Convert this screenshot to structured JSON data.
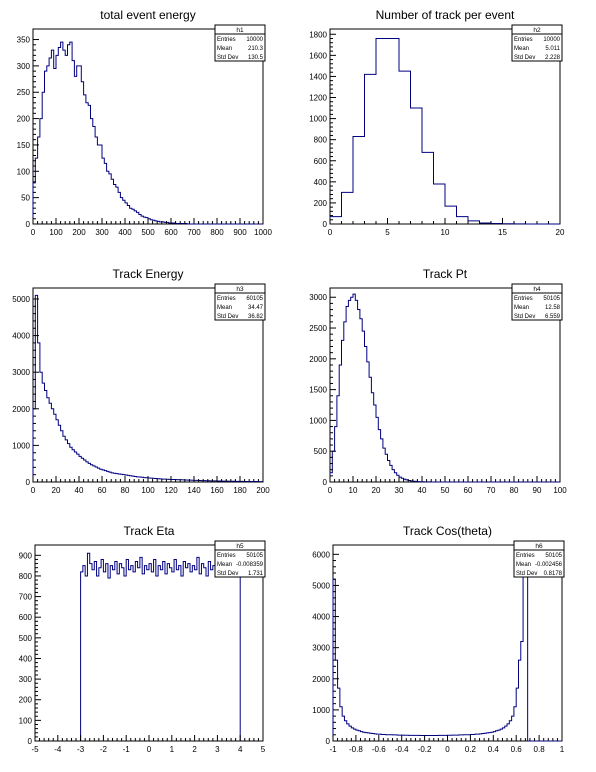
{
  "chart_data": [
    {
      "type": "histogram",
      "title": "total event  energy",
      "stats": {
        "name": "h1",
        "rows": [
          [
            "Entries",
            "10000"
          ],
          [
            "Mean",
            "210.3"
          ],
          [
            "Std Dev",
            "130.5"
          ]
        ]
      },
      "xlim": [
        0,
        1000
      ],
      "ylim": [
        0,
        370
      ],
      "xticks": [
        0,
        100,
        200,
        300,
        400,
        500,
        600,
        700,
        800,
        900,
        1000
      ],
      "yticks": [
        0,
        50,
        100,
        150,
        200,
        250,
        300,
        350
      ],
      "binwidth": 10,
      "values": [
        78,
        125,
        165,
        200,
        250,
        290,
        300,
        315,
        330,
        295,
        320,
        335,
        345,
        330,
        320,
        340,
        345,
        310,
        280,
        300,
        300,
        270,
        245,
        230,
        225,
        200,
        185,
        165,
        150,
        150,
        125,
        115,
        100,
        95,
        85,
        75,
        70,
        60,
        50,
        45,
        40,
        35,
        30,
        28,
        25,
        22,
        18,
        15,
        13,
        12,
        10,
        8,
        7,
        6,
        5,
        4,
        4,
        3,
        3,
        2,
        2,
        2,
        1,
        1,
        1,
        1,
        1,
        0,
        0,
        0,
        0,
        0,
        0,
        0,
        0,
        0,
        0,
        0,
        0,
        0,
        0,
        0,
        0,
        0,
        0,
        0,
        0,
        0,
        0,
        0,
        0,
        0,
        0,
        0,
        0,
        0,
        0,
        0,
        0,
        0
      ]
    },
    {
      "type": "histogram",
      "title": "Number of track per event",
      "stats": {
        "name": "h2",
        "rows": [
          [
            "Entries",
            "10000"
          ],
          [
            "Mean",
            "5.011"
          ],
          [
            "Std Dev",
            "2.228"
          ]
        ]
      },
      "xlim": [
        0,
        20
      ],
      "ylim": [
        0,
        1850
      ],
      "xticks": [
        0,
        5,
        10,
        15,
        20
      ],
      "yticks": [
        0,
        200,
        400,
        600,
        800,
        1000,
        1200,
        1400,
        1600,
        1800
      ],
      "binwidth": 1,
      "values": [
        70,
        300,
        830,
        1420,
        1760,
        1760,
        1450,
        1100,
        680,
        380,
        170,
        70,
        30,
        10,
        5,
        2,
        1,
        0,
        0,
        0
      ]
    },
    {
      "type": "histogram",
      "title": "Track Energy",
      "stats": {
        "name": "h3",
        "rows": [
          [
            "Entries",
            "60105"
          ],
          [
            "Mean",
            "34.47"
          ],
          [
            "Std Dev",
            "36.82"
          ]
        ]
      },
      "xlim": [
        0,
        200
      ],
      "ylim": [
        0,
        5300
      ],
      "xticks": [
        0,
        20,
        40,
        60,
        80,
        100,
        120,
        140,
        160,
        180,
        200
      ],
      "yticks": [
        0,
        1000,
        2000,
        3000,
        4000,
        5000
      ],
      "binwidth": 2,
      "values": [
        2000,
        5100,
        3800,
        3000,
        2700,
        2500,
        2300,
        2150,
        2000,
        1850,
        1700,
        1550,
        1400,
        1250,
        1150,
        1050,
        950,
        880,
        820,
        760,
        700,
        650,
        600,
        550,
        510,
        470,
        440,
        410,
        380,
        350,
        330,
        310,
        290,
        270,
        250,
        240,
        230,
        220,
        210,
        200,
        190,
        180,
        170,
        160,
        150,
        140,
        135,
        130,
        120,
        115,
        110,
        105,
        100,
        95,
        90,
        85,
        80,
        78,
        75,
        72,
        70,
        68,
        65,
        62,
        60,
        58,
        55,
        52,
        50,
        48,
        45,
        43,
        40,
        38,
        36,
        35,
        33,
        32,
        30,
        30,
        28,
        27,
        25,
        25,
        23,
        22,
        20,
        20,
        18,
        18,
        17,
        16,
        15,
        15,
        14,
        13,
        12,
        12,
        11,
        10
      ]
    },
    {
      "type": "histogram",
      "title": "Track Pt",
      "stats": {
        "name": "h4",
        "rows": [
          [
            "Entries",
            "50105"
          ],
          [
            "Mean",
            "12.58"
          ],
          [
            "Std Dev",
            "6.559"
          ]
        ]
      },
      "xlim": [
        0,
        100
      ],
      "ylim": [
        0,
        3150
      ],
      "xticks": [
        0,
        10,
        20,
        30,
        40,
        50,
        60,
        70,
        80,
        90,
        100
      ],
      "yticks": [
        0,
        500,
        1000,
        1500,
        2000,
        2500,
        3000
      ],
      "binwidth": 1,
      "values": [
        150,
        500,
        900,
        1400,
        1900,
        2300,
        2600,
        2850,
        2950,
        3000,
        3050,
        2950,
        2800,
        2650,
        2450,
        2200,
        1950,
        1700,
        1450,
        1250,
        1050,
        850,
        700,
        550,
        450,
        350,
        270,
        200,
        150,
        110,
        80,
        60,
        45,
        35,
        25,
        18,
        13,
        10,
        7,
        5,
        4,
        3,
        2,
        2,
        1,
        1,
        1,
        0,
        0,
        0,
        0,
        0,
        0,
        0,
        0,
        0,
        0,
        0,
        0,
        0,
        0,
        0,
        0,
        0,
        0,
        0,
        0,
        0,
        0,
        0,
        0,
        0,
        0,
        0,
        0,
        0,
        0,
        0,
        0,
        0,
        0,
        0,
        0,
        0,
        0,
        0,
        0,
        0,
        0,
        0,
        0,
        0,
        0,
        0,
        0,
        0,
        0,
        0,
        0,
        0
      ]
    },
    {
      "type": "histogram",
      "title": "Track Eta",
      "stats": {
        "name": "h5",
        "rows": [
          [
            "Entries",
            "50105"
          ],
          [
            "Mean",
            "-0.008359"
          ],
          [
            "Std Dev",
            "1.731"
          ]
        ]
      },
      "xlim": [
        -5,
        5
      ],
      "ylim": [
        0,
        950
      ],
      "xticks": [
        -5,
        -4,
        -3,
        -2,
        -1,
        0,
        1,
        2,
        3,
        4,
        5
      ],
      "yticks": [
        0,
        100,
        200,
        300,
        400,
        500,
        600,
        700,
        800,
        900
      ],
      "binwidth": 0.1,
      "xstart": -3.0,
      "values": [
        820,
        850,
        800,
        910,
        860,
        830,
        870,
        800,
        840,
        880,
        820,
        860,
        790,
        850,
        830,
        870,
        810,
        860,
        840,
        800,
        880,
        830,
        850,
        820,
        870,
        840,
        890,
        810,
        850,
        830,
        860,
        820,
        880,
        800,
        850,
        830,
        870,
        810,
        860,
        840,
        820,
        880,
        830,
        850,
        800,
        870,
        840,
        860,
        820,
        850,
        830,
        890,
        810,
        860,
        840,
        800,
        870,
        830,
        850,
        820,
        900,
        840,
        860,
        810,
        830,
        870,
        820,
        850,
        840,
        860
      ]
    },
    {
      "type": "histogram",
      "title": "Track Cos(theta)",
      "stats": {
        "name": "h6",
        "rows": [
          [
            "Entries",
            "50105"
          ],
          [
            "Mean",
            "-0.002456"
          ],
          [
            "Std Dev",
            "0.8178"
          ]
        ]
      },
      "xlim": [
        -1,
        1
      ],
      "ylim": [
        0,
        6300
      ],
      "xticks": [
        -1,
        -0.8,
        -0.6,
        -0.4,
        -0.2,
        0,
        0.2,
        0.4,
        0.6,
        0.8,
        1
      ],
      "xticklabels": [
        "-1",
        "-0.8",
        "-0.6",
        "-0.4",
        "-0.2",
        "0",
        "0.2",
        "0.4",
        "0.6",
        "0.8",
        "1"
      ],
      "yticks": [
        0,
        1000,
        2000,
        3000,
        4000,
        5000,
        6000
      ],
      "binwidth": 0.02,
      "values": [
        5200,
        2600,
        1700,
        1100,
        800,
        650,
        550,
        480,
        420,
        380,
        350,
        330,
        300,
        280,
        270,
        260,
        250,
        240,
        230,
        220,
        220,
        210,
        210,
        200,
        200,
        200,
        195,
        195,
        190,
        190,
        190,
        185,
        185,
        180,
        180,
        180,
        180,
        180,
        175,
        175,
        175,
        175,
        175,
        175,
        175,
        175,
        180,
        180,
        180,
        180,
        185,
        185,
        190,
        190,
        190,
        195,
        195,
        200,
        200,
        200,
        210,
        210,
        220,
        220,
        230,
        240,
        250,
        260,
        270,
        280,
        300,
        330,
        350,
        380,
        420,
        480,
        550,
        650,
        800,
        1100,
        1700,
        2600,
        3200,
        5400,
        5900,
        0,
        0,
        0,
        0,
        0,
        0,
        0,
        0,
        0,
        0,
        0,
        0,
        0,
        0,
        0
      ]
    }
  ]
}
